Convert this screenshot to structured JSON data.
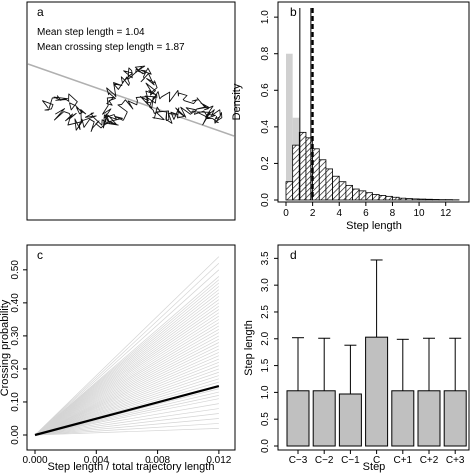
{
  "chart_data": [
    {
      "panel": "a",
      "type": "scatter",
      "annotations": [
        "Mean step length = 1.04",
        "Mean crossing step length = 1.87"
      ],
      "colors": {
        "trajectory": "#111111",
        "crossing_line": "#b0b0b0"
      }
    },
    {
      "panel": "b",
      "type": "bar",
      "xlabel": "Step length",
      "ylabel": "Density",
      "xticks": [
        0,
        2,
        4,
        6,
        8,
        10,
        12
      ],
      "yticks": [
        0.0,
        0.2,
        0.4,
        0.6,
        0.8,
        1.0
      ],
      "xlim": [
        0,
        13
      ],
      "ylim": [
        0,
        1.05
      ],
      "bin_width": 0.5,
      "series": [
        {
          "style": "solid-gray",
          "values": [
            0.8,
            0.45,
            0.09,
            0.0
          ]
        },
        {
          "style": "hatched",
          "values": [
            0.1,
            0.3,
            0.37,
            0.34,
            0.28,
            0.22,
            0.17,
            0.13,
            0.1,
            0.08,
            0.06,
            0.05,
            0.04,
            0.03,
            0.025,
            0.02,
            0.015,
            0.01,
            0.008,
            0.006,
            0.005,
            0.004,
            0.003,
            0.002,
            0.002,
            0.001
          ]
        }
      ],
      "vlines": [
        {
          "x": 1.04,
          "style": "solid"
        },
        {
          "x": 1.87,
          "style": "solid"
        },
        {
          "x": 2.0,
          "style": "dashed"
        }
      ]
    },
    {
      "panel": "c",
      "type": "line",
      "xlabel": "Step length / total trajectory length",
      "ylabel": "Crossing probability",
      "xticks": [
        0.0,
        0.004,
        0.008,
        0.012
      ],
      "xtick_labels": [
        "0.000",
        "0.004",
        "0.008",
        "0.012"
      ],
      "yticks": [
        0.0,
        0.1,
        0.2,
        0.3,
        0.4,
        0.5
      ],
      "ytick_labels": [
        "0.00",
        "0.10",
        "0.20",
        "0.30",
        "0.40",
        "0.50"
      ],
      "xlim": [
        0,
        0.0124
      ],
      "ylim": [
        0,
        0.56
      ],
      "bold_line": {
        "x": [
          0,
          0.012
        ],
        "y": [
          0,
          0.148
        ]
      },
      "background_slopes_at_0_012": [
        0.02,
        0.035,
        0.05,
        0.065,
        0.08,
        0.095,
        0.11,
        0.12,
        0.13,
        0.14,
        0.15,
        0.16,
        0.17,
        0.18,
        0.19,
        0.2,
        0.21,
        0.22,
        0.23,
        0.24,
        0.25,
        0.26,
        0.27,
        0.28,
        0.29,
        0.3,
        0.31,
        0.32,
        0.33,
        0.34,
        0.35,
        0.36,
        0.37,
        0.38,
        0.39,
        0.4,
        0.41,
        0.42,
        0.43,
        0.44,
        0.45,
        0.46,
        0.47,
        0.48,
        0.5,
        0.52,
        0.54
      ],
      "colors": {
        "bold": "#000000",
        "background": "#d4d4d4"
      }
    },
    {
      "panel": "d",
      "type": "bar",
      "xlabel": "Step",
      "ylabel": "Step length",
      "categories": [
        "C−3",
        "C−2",
        "C−1",
        "C",
        "C+1",
        "C+2",
        "C+3"
      ],
      "values": [
        1.03,
        1.03,
        0.97,
        2.03,
        1.03,
        1.03,
        1.03
      ],
      "error_upper": [
        2.02,
        2.01,
        1.88,
        3.47,
        1.99,
        2.01,
        2.01
      ],
      "yticks": [
        0.0,
        0.5,
        1.0,
        1.5,
        2.0,
        2.5,
        3.0,
        3.5
      ],
      "ylim": [
        0,
        3.6
      ],
      "colors": {
        "bar": "#c0c0c0"
      }
    }
  ]
}
